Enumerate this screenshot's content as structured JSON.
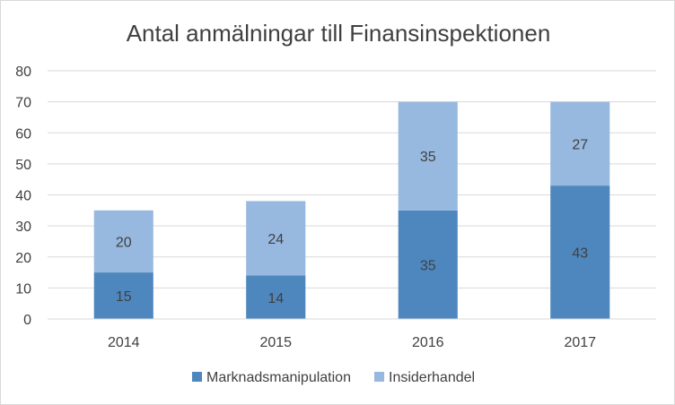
{
  "chart_data": {
    "type": "bar",
    "stacked": true,
    "title": "Antal anmälningar till Finansinspektionen",
    "xlabel": "",
    "ylabel": "",
    "categories": [
      "2014",
      "2015",
      "2016",
      "2017"
    ],
    "series": [
      {
        "name": "Marknadsmanipulation",
        "values": [
          15,
          14,
          35,
          43
        ],
        "color": "#4e87be"
      },
      {
        "name": "Insiderhandel",
        "values": [
          20,
          24,
          35,
          27
        ],
        "color": "#97b8df"
      }
    ],
    "ylim": [
      0,
      80
    ],
    "yticks": [
      0,
      10,
      20,
      30,
      40,
      50,
      60,
      70,
      80
    ],
    "grid": true,
    "legend_position": "bottom",
    "data_labels": true
  }
}
